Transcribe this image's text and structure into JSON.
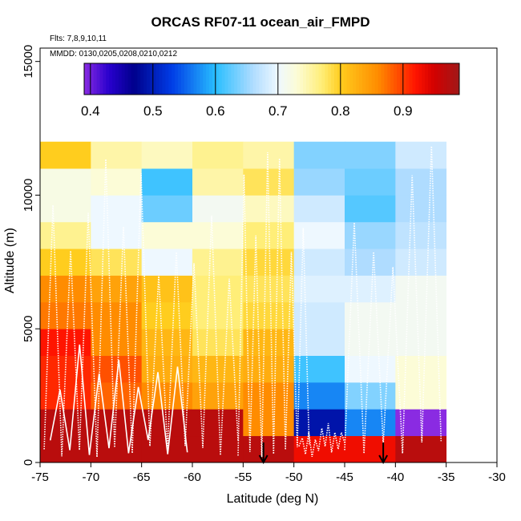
{
  "chart_data": {
    "type": "heatmap",
    "title": "ORCAS RF07-11 ocean_air_FMPD",
    "note_flights": "Flts: 7,8,9,10,11",
    "note_dates": "MMDD: 0130,0205,0208,0210,0212",
    "xlabel": "Latitude (deg N)",
    "ylabel": "Altitude (m)",
    "xlim": [
      -75,
      -30
    ],
    "ylim": [
      0,
      15500
    ],
    "x_ticks": [
      -75,
      -70,
      -65,
      -60,
      -55,
      -50,
      -45,
      -40,
      -35,
      -30
    ],
    "x_tick_labels": [
      "-75",
      "-70",
      "-65",
      "-60",
      "-55",
      "-50",
      "-45",
      "-40",
      "-35",
      "-30"
    ],
    "y_ticks": [
      0,
      5000,
      10000,
      15000
    ],
    "y_tick_labels": [
      "0",
      "5000",
      "10000",
      "15000"
    ],
    "lat_edges": [
      -75,
      -70,
      -65,
      -60,
      -55,
      -50,
      -45,
      -40,
      -35
    ],
    "alt_edges": [
      0,
      1000,
      2000,
      3000,
      4000,
      5000,
      6000,
      7000,
      8000,
      9000,
      10000,
      11000,
      12000
    ],
    "values": [
      [
        0.97,
        0.97,
        0.97,
        0.97,
        0.97,
        0.93,
        0.93,
        0.97
      ],
      [
        0.97,
        0.97,
        0.97,
        0.97,
        0.86,
        0.49,
        0.57,
        0.39
      ],
      [
        0.91,
        0.88,
        0.86,
        0.84,
        0.86,
        0.57,
        0.64,
        0.73
      ],
      [
        0.91,
        0.89,
        0.83,
        0.82,
        0.83,
        0.61,
        0.7,
        0.73
      ],
      [
        0.92,
        0.86,
        0.82,
        0.78,
        0.82,
        0.68,
        0.71,
        0.71
      ],
      [
        0.87,
        0.86,
        0.8,
        0.77,
        0.79,
        0.68,
        0.71,
        0.71
      ],
      [
        0.86,
        0.84,
        0.81,
        0.77,
        0.78,
        0.69,
        0.69,
        0.71
      ],
      [
        0.8,
        0.78,
        0.7,
        0.76,
        0.79,
        0.68,
        0.66,
        0.68
      ],
      [
        0.76,
        0.7,
        0.73,
        0.73,
        0.77,
        0.7,
        0.65,
        0.67
      ],
      [
        0.72,
        0.7,
        0.63,
        0.71,
        0.74,
        0.68,
        0.62,
        0.66
      ],
      [
        0.72,
        0.73,
        0.61,
        0.75,
        0.78,
        0.65,
        0.63,
        0.66
      ],
      [
        0.8,
        0.75,
        0.74,
        0.76,
        0.75,
        0.64,
        0.64,
        0.68
      ]
    ],
    "colorbar": {
      "min": 0.39,
      "max": 0.99,
      "ticks": [
        0.4,
        0.5,
        0.6,
        0.7,
        0.8,
        0.9
      ],
      "tick_labels": [
        "0.4",
        "0.5",
        "0.6",
        "0.7",
        "0.8",
        "0.9"
      ]
    },
    "arrows_at_latitude": [
      -53,
      -41.2
    ]
  }
}
